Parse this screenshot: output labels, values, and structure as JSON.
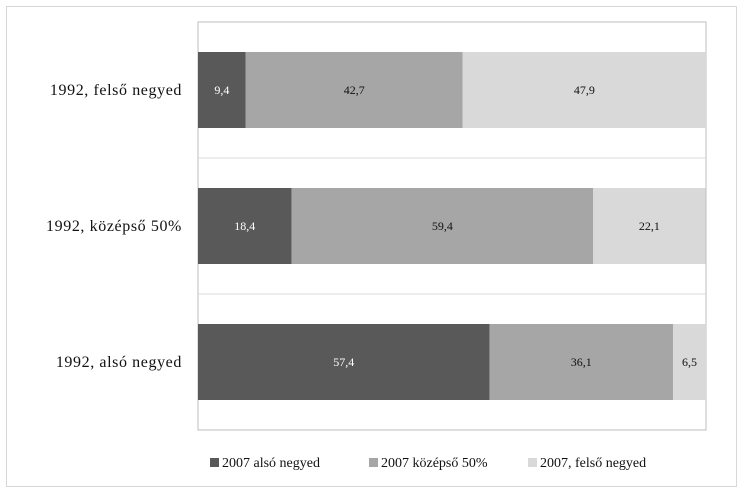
{
  "chart_data": {
    "type": "bar",
    "orientation": "horizontal",
    "stacked": "percent",
    "categories": [
      "1992, felső negyed",
      "1992, középső 50%",
      "1992, alsó negyed"
    ],
    "series": [
      {
        "name": "2007 alsó negyed",
        "color": "#595959",
        "label_color": "#ffffff",
        "values": [
          9.4,
          18.4,
          57.4
        ],
        "labels": [
          "9,4",
          "18,4",
          "57,4"
        ]
      },
      {
        "name": "2007 középső 50%",
        "color": "#a6a6a6",
        "label_color": "#111111",
        "values": [
          42.7,
          59.4,
          36.1
        ],
        "labels": [
          "42,7",
          "59,4",
          "36,1"
        ]
      },
      {
        "name": "2007, felső negyed",
        "color": "#d9d9d9",
        "label_color": "#111111",
        "values": [
          47.9,
          22.1,
          6.5
        ],
        "labels": [
          "47,9",
          "22,1",
          "6,5"
        ]
      }
    ],
    "xlim": [
      0,
      100
    ],
    "gridlines": true,
    "legend_position": "bottom"
  }
}
